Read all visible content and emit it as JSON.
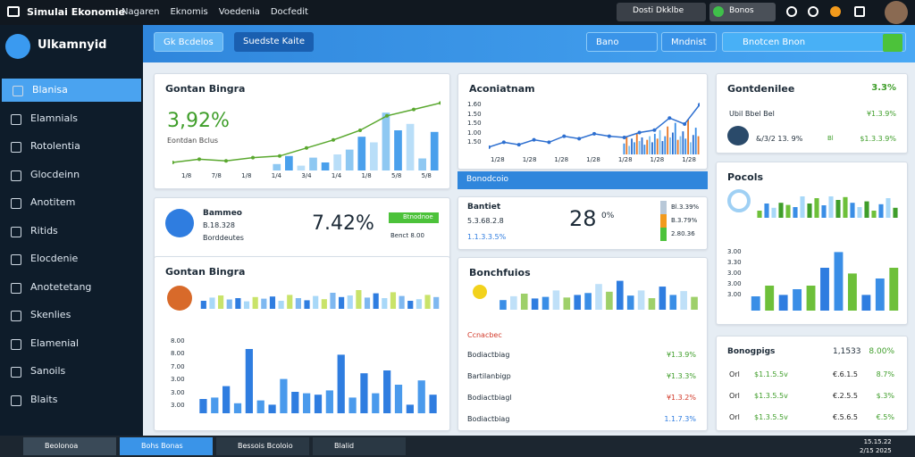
{
  "topbar": {
    "title": "Simulai Ekonomie",
    "menu": [
      "Nagaren",
      "Eknomis",
      "Voedenia",
      "Docfedit"
    ],
    "user_button": "Dosti Dkklbe",
    "status_button": "Bonos"
  },
  "sidebar": {
    "brand": "Ulkamnyid",
    "items": [
      "Blanisa",
      "Elamnials",
      "Rotolentia",
      "Glocdeinn",
      "Anotitem",
      "Ritids",
      "Elocdenie",
      "Anotetetang",
      "Skenlies",
      "Elamenial",
      "Sanoils",
      "Blaits"
    ]
  },
  "toolbar": {
    "tabs": [
      "Gk Bcdelos",
      "Suedste Kaite"
    ],
    "right": [
      "Bano",
      "Mndnist",
      "Bnotcen Bnon"
    ]
  },
  "overview": {
    "title": "Gontan Bingra",
    "value": "3,92%",
    "subtitle": "Eontdan Bclus",
    "xlabels": [
      "1/8",
      "7/8",
      "1/8",
      "1/4",
      "3/4",
      "1/4",
      "1/8",
      "5/8",
      "5/8"
    ],
    "chart": {
      "ylim": [
        0,
        100
      ],
      "palette": [
        "#8ec8f2",
        "#4aa0ec",
        "#b9def8"
      ],
      "values": [
        8,
        18,
        6,
        16,
        10,
        20,
        26,
        42,
        35,
        72,
        50,
        58,
        15,
        48
      ],
      "line": [
        10,
        14,
        12,
        16,
        18,
        28,
        38,
        50,
        68,
        76,
        84
      ],
      "line_color": "#5aa82f"
    }
  },
  "accounts": {
    "title": "Aconiatnam",
    "ylabels": [
      "1.60",
      "1.50",
      "1.50",
      "1.00",
      "1.50"
    ],
    "xlabels": [
      "1/28",
      "1/28",
      "1/28",
      "1/28",
      "1/28",
      "1/28",
      "1/28"
    ],
    "chart": {
      "ylim": [
        0,
        100
      ],
      "palette": [
        "#3a8ee6",
        "#e87a2a",
        "#7fc0f0",
        "#2d6fd0"
      ],
      "values": [
        18,
        30,
        14,
        26,
        20,
        35,
        22,
        28,
        16,
        24,
        30,
        20,
        34,
        26,
        40,
        22,
        30,
        46,
        28,
        36,
        52,
        24,
        30,
        38,
        26,
        58,
        20,
        32,
        44,
        30
      ],
      "line": [
        12,
        20,
        16,
        24,
        20,
        30,
        26,
        34,
        30,
        28,
        36,
        40,
        60,
        50,
        82
      ],
      "line_color": "#2d6fd0"
    }
  },
  "summary": {
    "title": "Gontdenilee",
    "value": "3.3%",
    "rows": [
      [
        "Ubil Bbel Bel",
        "¥1.3.9%"
      ],
      [
        "&/3/2 13. 9%",
        "$1.3.3.9%"
      ]
    ],
    "tag": "Bl"
  },
  "banner": {
    "title": "Bonodcoio"
  },
  "balance": {
    "title": "Bantiet",
    "value": "28",
    "unit": "0%",
    "rows": [
      "5.3.68.2.8",
      "1.1.3.3.5%"
    ],
    "legend": [
      "Bl.3.39%",
      "B.3.79%",
      "2.80.36"
    ]
  },
  "pocols": {
    "title": "Pocols",
    "chart": {
      "ylim": [
        0,
        100
      ],
      "palette": [
        "#6ec03a",
        "#3a8ee6",
        "#a8d8f8",
        "#3f9e2a"
      ],
      "values": [
        20,
        40,
        28,
        42,
        36,
        30,
        60,
        40,
        55,
        35,
        60,
        50,
        58,
        42,
        30,
        46,
        20,
        38,
        55,
        28
      ]
    },
    "chart2": {
      "ylim": [
        0,
        100
      ],
      "palette": [
        "#3a8ee6",
        "#6ec03a",
        "#2f7de0"
      ],
      "values": [
        20,
        35,
        22,
        30,
        35,
        60,
        82,
        52,
        22,
        45,
        60
      ]
    },
    "ylabels": [
      "3.00",
      "3.30",
      "3.00",
      "3.00",
      "3.00"
    ]
  },
  "earnings": {
    "title": "Bammeo",
    "lines": [
      "B.18.328",
      "Borddeutes"
    ],
    "value": "7.42%",
    "badge": "Btnodnoe",
    "note": "Benct 8.00"
  },
  "usage": {
    "title": "Gontan Bingra",
    "ylabels": [
      "8.00",
      "8.00",
      "7.00",
      "3.00",
      "3.00",
      "3.00"
    ],
    "chart": {
      "ylim": [
        0,
        100
      ],
      "palette": [
        "#2f7de0",
        "#a8d8f8",
        "#c9e36a",
        "#7fb8f0"
      ],
      "values": [
        30,
        42,
        50,
        35,
        40,
        28,
        44,
        38,
        46,
        30,
        52,
        40,
        32,
        48,
        36,
        60,
        44,
        50,
        70,
        42,
        58,
        40,
        62,
        48,
        30,
        36,
        52,
        44
      ]
    },
    "chart2": {
      "ylim": [
        0,
        100
      ],
      "palette": [
        "#2f7de0",
        "#4a9aec"
      ],
      "values": [
        20,
        22,
        38,
        14,
        90,
        18,
        12,
        48,
        30,
        28,
        26,
        32,
        82,
        22,
        56,
        28,
        60,
        40,
        12,
        46,
        26
      ]
    }
  },
  "breakdown": {
    "title": "Bonchfuios",
    "subtitle": "Ccnacbec",
    "chart": {
      "ylim": [
        0,
        100
      ],
      "palette": [
        "#3a8ee6",
        "#bfe0f8",
        "#9ed06a",
        "#2f7de0"
      ],
      "values": [
        30,
        42,
        50,
        35,
        40,
        60,
        38,
        46,
        52,
        80,
        56,
        90,
        44,
        60,
        36,
        72,
        46,
        58,
        40
      ]
    },
    "rows": [
      [
        "Bodiactbiag",
        "¥1.3.9%",
        "#3f9e2a"
      ],
      [
        "Bartilanbigp",
        "¥1.3.3%",
        "#3f9e2a"
      ],
      [
        "Bodiactbiagl",
        "¥1.3.2%",
        "#d23a2a"
      ],
      [
        "Bodiactbiag",
        "1.1.7.3%",
        "#2f7de0"
      ]
    ]
  },
  "bonogpigs": {
    "header": [
      "Bonogpigs",
      "1,1533",
      "8.00%"
    ],
    "rows": [
      [
        "Orl",
        "$1.1.5.5v",
        "€.6.1.5",
        "8.7%"
      ],
      [
        "Orl",
        "$1.3.5.5v",
        "€.2.5.5",
        "$.3%"
      ],
      [
        "Orl",
        "$1.3.5.5v",
        "€.5.6.5",
        "€.5%"
      ]
    ]
  },
  "taskbar": {
    "items": [
      "Beolonoa",
      "Bohs Bonas",
      "Bessois Bcoloio",
      "Blalid"
    ],
    "clock": [
      "15.15.22",
      "2/15 2025"
    ]
  }
}
